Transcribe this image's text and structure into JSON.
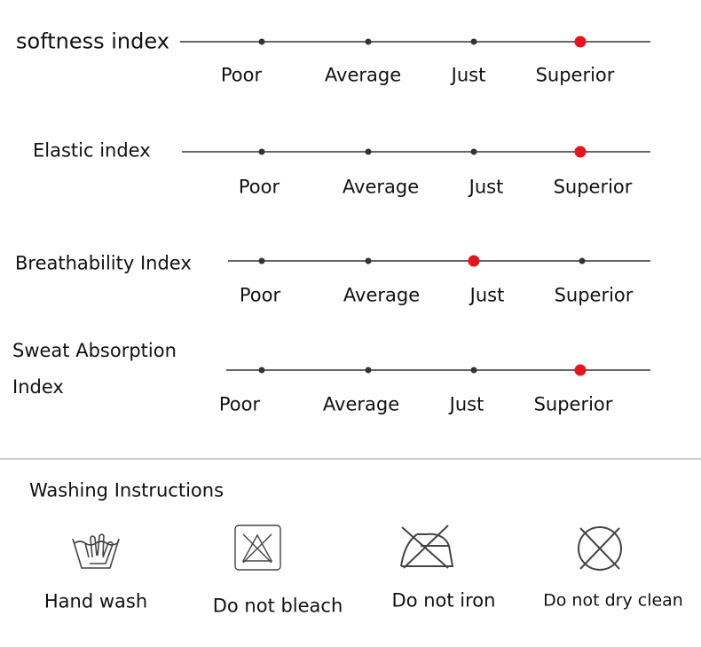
{
  "indices": [
    {
      "label": "softness index",
      "levels": [
        "Poor",
        "Average",
        "Just",
        "Superior"
      ],
      "selected": 3
    },
    {
      "label": "Elastic index",
      "levels": [
        "Poor",
        "Average",
        "Just",
        "Superior"
      ],
      "selected": 3
    },
    {
      "label": "Breathability Index",
      "levels": [
        "Poor",
        "Average",
        "Just",
        "Superior"
      ],
      "selected": 2
    },
    {
      "label": "Sweat Absorption Index",
      "levels": [
        "Poor",
        "Average",
        "Just",
        "Superior"
      ],
      "selected": 3
    }
  ],
  "washing": {
    "title": "Washing Instructions",
    "items": [
      {
        "label": "Hand wash"
      },
      {
        "label": "Do not bleach"
      },
      {
        "label": "Do not iron"
      },
      {
        "label": "Do not dry clean"
      }
    ]
  }
}
